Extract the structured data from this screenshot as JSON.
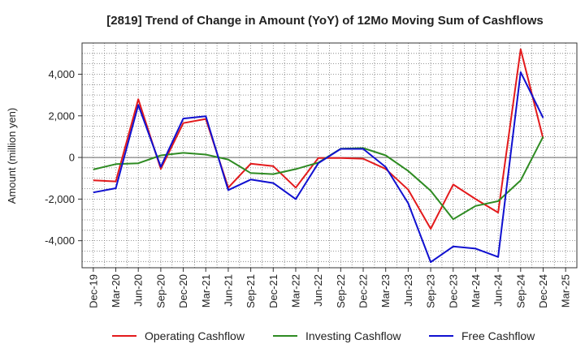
{
  "chart_data": {
    "type": "line",
    "title": "[2819]  Trend of Change in Amount (YoY) of 12Mo Moving Sum of Cashflows",
    "xlabel": "",
    "ylabel": "Amount (million yen)",
    "ylim": [
      -5300,
      5500
    ],
    "yticks": [
      -4000,
      -2000,
      0,
      2000,
      4000
    ],
    "ytick_labels": [
      "-4,000",
      "-2,000",
      "0",
      "2,000",
      "4,000"
    ],
    "categories": [
      "Dec-19",
      "Mar-20",
      "Jun-20",
      "Sep-20",
      "Dec-20",
      "Mar-21",
      "Jun-21",
      "Sep-21",
      "Dec-21",
      "Mar-22",
      "Jun-22",
      "Sep-22",
      "Dec-22",
      "Mar-23",
      "Jun-23",
      "Sep-23",
      "Dec-23",
      "Mar-24",
      "Jun-24",
      "Sep-24",
      "Dec-24",
      "Mar-25"
    ],
    "series": [
      {
        "name": "Operating Cashflow",
        "color": "#e31a1c",
        "values": [
          -1100,
          -1150,
          2800,
          -550,
          1650,
          1850,
          -1450,
          -300,
          -420,
          -1450,
          -30,
          -30,
          -60,
          -550,
          -1550,
          -3430,
          -1300,
          -2000,
          -2650,
          5200,
          900,
          null
        ]
      },
      {
        "name": "Investing Cashflow",
        "color": "#2e8b22",
        "values": [
          -580,
          -320,
          -280,
          100,
          220,
          140,
          -100,
          -750,
          -800,
          -560,
          -250,
          420,
          450,
          100,
          -650,
          -1600,
          -2970,
          -2330,
          -2100,
          -1100,
          1000,
          null
        ]
      },
      {
        "name": "Free Cashflow",
        "color": "#1010d0",
        "values": [
          -1680,
          -1480,
          2520,
          -450,
          1870,
          1980,
          -1570,
          -1060,
          -1230,
          -2000,
          -280,
          410,
          410,
          -460,
          -2200,
          -5030,
          -4280,
          -4380,
          -4780,
          4100,
          1900,
          null
        ]
      }
    ],
    "legend": "bottom",
    "grid": true
  }
}
